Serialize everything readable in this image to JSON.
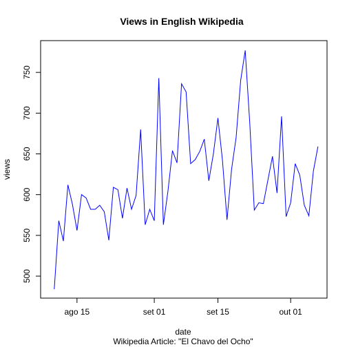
{
  "chart_data": {
    "type": "line",
    "title": "Views in English Wikipedia",
    "xlabel": "date",
    "ylabel": "views",
    "subtitle": "Wikipedia Article: \"El Chavo del Ocho\"",
    "grid": false,
    "xlim": [
      "2015-08-07",
      "2015-10-09"
    ],
    "ylim": [
      473,
      789
    ],
    "x_ticks": [
      {
        "date": "2015-08-15",
        "label": "ago 15"
      },
      {
        "date": "2015-09-01",
        "label": "set 01"
      },
      {
        "date": "2015-09-15",
        "label": "set 15"
      },
      {
        "date": "2015-10-01",
        "label": "out 01"
      }
    ],
    "y_ticks": [
      500,
      550,
      600,
      650,
      700,
      750
    ],
    "series": [
      {
        "color": "#0000ff",
        "points": [
          [
            "2015-08-10",
            484
          ],
          [
            "2015-08-11",
            568
          ],
          [
            "2015-08-12",
            543
          ],
          [
            "2015-08-13",
            612
          ],
          [
            "2015-08-14",
            588
          ],
          [
            "2015-08-15",
            556
          ],
          [
            "2015-08-16",
            600
          ],
          [
            "2015-08-17",
            596
          ],
          [
            "2015-08-18",
            582
          ],
          [
            "2015-08-19",
            582
          ],
          [
            "2015-08-20",
            587
          ],
          [
            "2015-08-21",
            579
          ],
          [
            "2015-08-22",
            544
          ],
          [
            "2015-08-23",
            609
          ],
          [
            "2015-08-24",
            606
          ],
          [
            "2015-08-25",
            571
          ],
          [
            "2015-08-26",
            608
          ],
          [
            "2015-08-27",
            582
          ],
          [
            "2015-08-28",
            599
          ],
          [
            "2015-08-29",
            680
          ],
          [
            "2015-08-30",
            563
          ],
          [
            "2015-08-31",
            582
          ],
          [
            "2015-09-01",
            568
          ],
          [
            "2015-09-02",
            743
          ],
          [
            "2015-09-03",
            563
          ],
          [
            "2015-09-04",
            604
          ],
          [
            "2015-09-05",
            654
          ],
          [
            "2015-09-06",
            639
          ],
          [
            "2015-09-07",
            736
          ],
          [
            "2015-09-08",
            726
          ],
          [
            "2015-09-09",
            638
          ],
          [
            "2015-09-10",
            643
          ],
          [
            "2015-09-11",
            653
          ],
          [
            "2015-09-12",
            668
          ],
          [
            "2015-09-13",
            617
          ],
          [
            "2015-09-14",
            650
          ],
          [
            "2015-09-15",
            694
          ],
          [
            "2015-09-16",
            642
          ],
          [
            "2015-09-17",
            569
          ],
          [
            "2015-09-18",
            631
          ],
          [
            "2015-09-19",
            670
          ],
          [
            "2015-09-20",
            740
          ],
          [
            "2015-09-21",
            777
          ],
          [
            "2015-09-22",
            688
          ],
          [
            "2015-09-23",
            581
          ],
          [
            "2015-09-24",
            590
          ],
          [
            "2015-09-25",
            589
          ],
          [
            "2015-09-26",
            618
          ],
          [
            "2015-09-27",
            647
          ],
          [
            "2015-09-28",
            602
          ],
          [
            "2015-09-29",
            696
          ],
          [
            "2015-09-30",
            573
          ],
          [
            "2015-10-01",
            590
          ],
          [
            "2015-10-02",
            638
          ],
          [
            "2015-10-03",
            624
          ],
          [
            "2015-10-04",
            587
          ],
          [
            "2015-10-05",
            574
          ],
          [
            "2015-10-06",
            629
          ],
          [
            "2015-10-07",
            659
          ]
        ]
      }
    ]
  }
}
